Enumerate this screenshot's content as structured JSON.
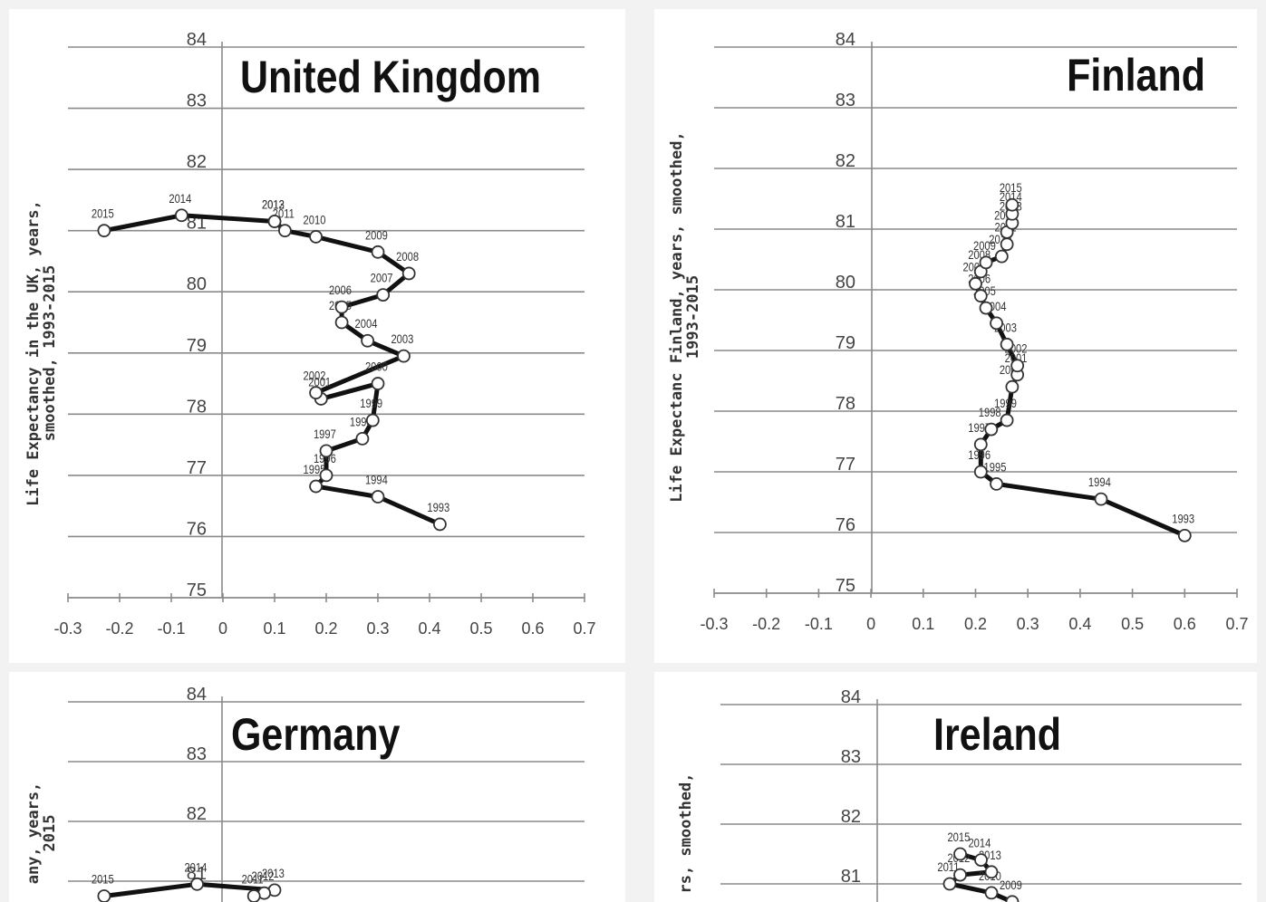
{
  "chart_data": [
    {
      "id": "uk",
      "type": "line",
      "title": "United Kingdom",
      "ylabel_lines": [
        "Life Expectancy in the UK, years,",
        "smoothed, 1993-2015"
      ],
      "xlim": [
        -0.3,
        0.7
      ],
      "ylim": [
        75,
        84
      ],
      "x_ticks": [
        "-0.3",
        "-0.2",
        "-0.1",
        "0",
        "0.1",
        "0.2",
        "0.3",
        "0.4",
        "0.5",
        "0.6",
        "0.7"
      ],
      "y_ticks": [
        "75",
        "76",
        "77",
        "78",
        "79",
        "80",
        "81",
        "82",
        "83",
        "84"
      ],
      "grid": true,
      "points": [
        {
          "year": "1993",
          "x": 0.42,
          "y": 76.2
        },
        {
          "year": "1994",
          "x": 0.3,
          "y": 76.65
        },
        {
          "year": "1995",
          "x": 0.18,
          "y": 76.82
        },
        {
          "year": "1996",
          "x": 0.2,
          "y": 77.0
        },
        {
          "year": "1997",
          "x": 0.2,
          "y": 77.4
        },
        {
          "year": "1998",
          "x": 0.27,
          "y": 77.6
        },
        {
          "year": "1999",
          "x": 0.29,
          "y": 77.9
        },
        {
          "year": "2000",
          "x": 0.3,
          "y": 78.5
        },
        {
          "year": "2001",
          "x": 0.19,
          "y": 78.25
        },
        {
          "year": "2002",
          "x": 0.18,
          "y": 78.35
        },
        {
          "year": "2003",
          "x": 0.35,
          "y": 78.95
        },
        {
          "year": "2004",
          "x": 0.28,
          "y": 79.2
        },
        {
          "year": "2005",
          "x": 0.23,
          "y": 79.5
        },
        {
          "year": "2006",
          "x": 0.23,
          "y": 79.75
        },
        {
          "year": "2007",
          "x": 0.31,
          "y": 79.95
        },
        {
          "year": "2008",
          "x": 0.36,
          "y": 80.3
        },
        {
          "year": "2009",
          "x": 0.3,
          "y": 80.65
        },
        {
          "year": "2010",
          "x": 0.18,
          "y": 80.9
        },
        {
          "year": "2011",
          "x": 0.12,
          "y": 81.0
        },
        {
          "year": "2012",
          "x": 0.1,
          "y": 81.15
        },
        {
          "year": "2013",
          "x": 0.1,
          "y": 81.15
        },
        {
          "year": "2014",
          "x": -0.08,
          "y": 81.25
        },
        {
          "year": "2015",
          "x": -0.23,
          "y": 81.0
        }
      ]
    },
    {
      "id": "fi",
      "type": "line",
      "title": "Finland",
      "ylabel_lines": [
        "Life Expectanc Finland, years, smoothed,",
        "1993-2015"
      ],
      "xlim": [
        -0.3,
        0.7
      ],
      "ylim": [
        75,
        84
      ],
      "x_ticks": [
        "-0.3",
        "-0.2",
        "-0.1",
        "0",
        "0.1",
        "0.2",
        "0.3",
        "0.4",
        "0.5",
        "0.6",
        "0.7"
      ],
      "y_ticks": [
        "75",
        "76",
        "77",
        "78",
        "79",
        "80",
        "81",
        "82",
        "83",
        "84"
      ],
      "grid": true,
      "points": [
        {
          "year": "1993",
          "x": 0.6,
          "y": 75.95
        },
        {
          "year": "1994",
          "x": 0.44,
          "y": 76.55
        },
        {
          "year": "1995",
          "x": 0.24,
          "y": 76.8
        },
        {
          "year": "1996",
          "x": 0.21,
          "y": 77.0
        },
        {
          "year": "1997",
          "x": 0.21,
          "y": 77.45
        },
        {
          "year": "1998",
          "x": 0.23,
          "y": 77.7
        },
        {
          "year": "1999",
          "x": 0.26,
          "y": 77.85
        },
        {
          "year": "2000",
          "x": 0.27,
          "y": 78.4
        },
        {
          "year": "2001",
          "x": 0.28,
          "y": 78.6
        },
        {
          "year": "2002",
          "x": 0.28,
          "y": 78.75
        },
        {
          "year": "2003",
          "x": 0.26,
          "y": 79.1
        },
        {
          "year": "2004",
          "x": 0.24,
          "y": 79.45
        },
        {
          "year": "2005",
          "x": 0.22,
          "y": 79.7
        },
        {
          "year": "2006",
          "x": 0.21,
          "y": 79.9
        },
        {
          "year": "2007",
          "x": 0.2,
          "y": 80.1
        },
        {
          "year": "2008",
          "x": 0.21,
          "y": 80.3
        },
        {
          "year": "2009",
          "x": 0.22,
          "y": 80.45
        },
        {
          "year": "2010",
          "x": 0.25,
          "y": 80.55
        },
        {
          "year": "2011",
          "x": 0.26,
          "y": 80.75
        },
        {
          "year": "2012",
          "x": 0.26,
          "y": 80.95
        },
        {
          "year": "2013",
          "x": 0.27,
          "y": 81.1
        },
        {
          "year": "2014",
          "x": 0.27,
          "y": 81.25
        },
        {
          "year": "2015",
          "x": 0.27,
          "y": 81.4
        }
      ]
    },
    {
      "id": "de",
      "type": "line",
      "title": "Germany",
      "ylabel_lines": [
        "any, years,",
        "2015"
      ],
      "xlim": [
        -0.3,
        0.7
      ],
      "ylim": [
        80.6,
        84
      ],
      "x_ticks": [],
      "y_ticks": [
        "81",
        "82",
        "83",
        "84"
      ],
      "grid": true,
      "points": [
        {
          "year": "2015",
          "x": -0.23,
          "y": 80.75
        },
        {
          "year": "2014",
          "x": -0.05,
          "y": 80.95
        },
        {
          "year": "2013",
          "x": 0.1,
          "y": 80.85
        },
        {
          "year": "2012",
          "x": 0.08,
          "y": 80.8
        },
        {
          "year": "2011",
          "x": 0.06,
          "y": 80.75
        }
      ]
    },
    {
      "id": "ie",
      "type": "line",
      "title": "Ireland",
      "ylabel_lines": [
        "rs, smoothed,"
      ],
      "xlim": [
        -0.3,
        0.7
      ],
      "ylim": [
        80.6,
        84
      ],
      "x_ticks": [],
      "y_ticks": [
        "81",
        "82",
        "83",
        "84"
      ],
      "grid": true,
      "points": [
        {
          "year": "2009",
          "x": 0.26,
          "y": 80.7
        },
        {
          "year": "2010",
          "x": 0.22,
          "y": 80.85
        },
        {
          "year": "2011",
          "x": 0.14,
          "y": 81.0
        },
        {
          "year": "2012",
          "x": 0.16,
          "y": 81.15
        },
        {
          "year": "2013",
          "x": 0.22,
          "y": 81.2
        },
        {
          "year": "2014",
          "x": 0.2,
          "y": 81.4
        },
        {
          "year": "2015",
          "x": 0.16,
          "y": 81.5
        }
      ]
    }
  ]
}
